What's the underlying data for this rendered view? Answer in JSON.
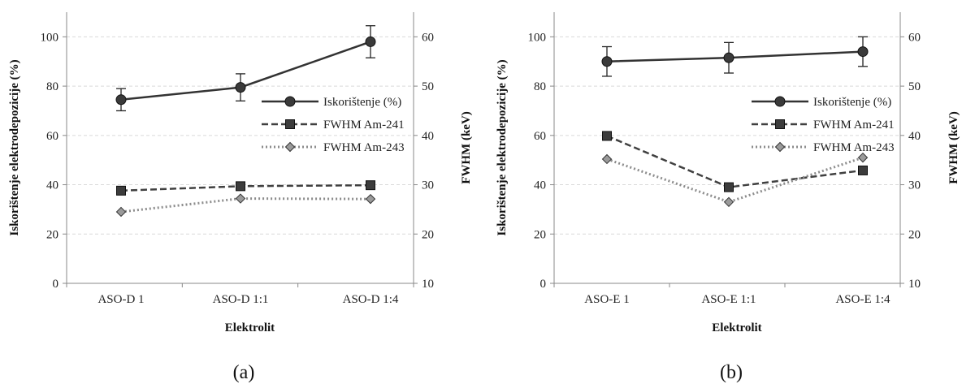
{
  "chart_data": [
    {
      "type": "line",
      "panel_label": "(a)",
      "categories": [
        "ASO-D 1",
        "ASO-D 1:1",
        "ASO-D 1:4"
      ],
      "xlabel": "Elektrolit",
      "ylabel": "Iskorištenje elektrodepozicije (%)",
      "y2label": "FWHM (keV)",
      "ylim": [
        0,
        110
      ],
      "y2lim": [
        10,
        65
      ],
      "yticks": [
        0,
        20,
        40,
        60,
        80,
        100
      ],
      "y2ticks": [
        10,
        20,
        30,
        40,
        50,
        60
      ],
      "grid": true,
      "legend_position": "right",
      "series": [
        {
          "name": "Iskorištenje (%)",
          "axis": "left",
          "marker": "circle",
          "style": "solid",
          "color": "#333333",
          "values": [
            74.5,
            79.5,
            98
          ],
          "errors": [
            4.5,
            5.5,
            6.5
          ]
        },
        {
          "name": "FWHM Am-241",
          "axis": "right",
          "marker": "square",
          "style": "dashed",
          "color": "#404040",
          "values": [
            28.8,
            29.7,
            29.9
          ]
        },
        {
          "name": "FWHM Am-243",
          "axis": "right",
          "marker": "diamond",
          "style": "dotted",
          "color": "#8c8c8c",
          "values": [
            24.5,
            27.2,
            27.1
          ]
        }
      ]
    },
    {
      "type": "line",
      "panel_label": "(b)",
      "categories": [
        "ASO-E 1",
        "ASO-E 1:1",
        "ASO-E 1:4"
      ],
      "xlabel": "Elektrolit",
      "ylabel": "Iskorištenje elektrodepozicije (%)",
      "y2label": "FWHM (keV)",
      "ylim": [
        0,
        110
      ],
      "y2lim": [
        10,
        65
      ],
      "yticks": [
        0,
        20,
        40,
        60,
        80,
        100
      ],
      "y2ticks": [
        10,
        20,
        30,
        40,
        50,
        60
      ],
      "grid": true,
      "legend_position": "right",
      "series": [
        {
          "name": "Iskorištenje (%)",
          "axis": "left",
          "marker": "circle",
          "style": "solid",
          "color": "#333333",
          "values": [
            90,
            91.5,
            94
          ],
          "errors": [
            6,
            6.2,
            6
          ]
        },
        {
          "name": "FWHM Am-241",
          "axis": "right",
          "marker": "square",
          "style": "dashed",
          "color": "#404040",
          "values": [
            39.9,
            29.5,
            32.9
          ]
        },
        {
          "name": "FWHM Am-243",
          "axis": "right",
          "marker": "diamond",
          "style": "dotted",
          "color": "#8c8c8c",
          "values": [
            35.2,
            26.5,
            35.5
          ]
        }
      ]
    }
  ]
}
